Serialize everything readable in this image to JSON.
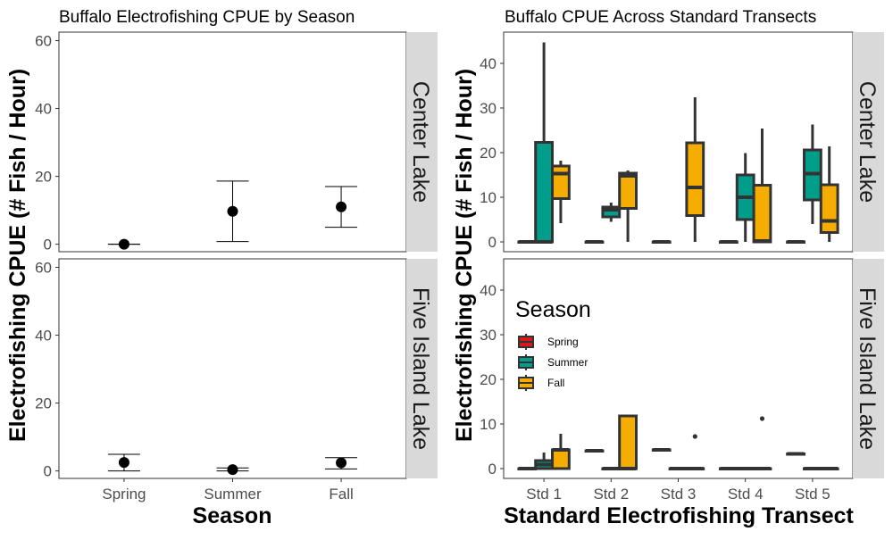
{
  "chart_data": [
    {
      "type": "point-errorbar",
      "title": "Buffalo Electrofishing CPUE by Season",
      "xlabel": "Season",
      "ylabel": "Electrofishing CPUE (# Fish / Hour)",
      "categories": [
        "Spring",
        "Summer",
        "Fall"
      ],
      "ylim": [
        0,
        60
      ],
      "yticks": [
        0,
        20,
        40,
        60
      ],
      "grid": false,
      "facets": [
        {
          "label": "Center Lake",
          "mean": [
            0,
            9.7,
            11
          ],
          "lower": [
            0,
            0.8,
            5
          ],
          "upper": [
            0,
            18.6,
            17
          ]
        },
        {
          "label": "Five Island Lake",
          "mean": [
            2.5,
            0.4,
            2.4
          ],
          "lower": [
            0,
            0,
            0.6
          ],
          "upper": [
            4.9,
            0.9,
            3.9
          ]
        }
      ]
    },
    {
      "type": "boxplot",
      "title": "Buffalo CPUE Across Standard Transects",
      "xlabel": "Standard Electrofishing Transect",
      "ylabel": "Electrofishing CPUE (# Fish / Hour)",
      "categories": [
        "Std 1",
        "Std 2",
        "Std 3",
        "Std 4",
        "Std 5"
      ],
      "ylim": [
        0,
        45
      ],
      "yticks": [
        0,
        10,
        20,
        30,
        40
      ],
      "grid": false,
      "legend": {
        "title": "Season",
        "placement": "inside-bottom-left",
        "entries": [
          "Spring",
          "Summer",
          "Fall"
        ]
      },
      "series_colors": {
        "Spring": "#d7191c",
        "Summer": "#009e8a",
        "Fall": "#f4ad00"
      },
      "facets": [
        {
          "label": "Center Lake",
          "boxes": [
            {
              "category": "Std 1",
              "series": "Spring",
              "min": 0,
              "q1": 0,
              "median": 0,
              "q3": 0,
              "max": 0,
              "outliers": []
            },
            {
              "category": "Std 1",
              "series": "Summer",
              "min": 0,
              "q1": 0,
              "median": 0,
              "q3": 22.3,
              "max": 44.7,
              "outliers": []
            },
            {
              "category": "Std 1",
              "series": "Fall",
              "min": 4.2,
              "q1": 9.7,
              "median": 15.3,
              "q3": 17,
              "max": 18.2,
              "outliers": []
            },
            {
              "category": "Std 2",
              "series": "Spring",
              "min": 0,
              "q1": 0,
              "median": 0,
              "q3": 0,
              "max": 0,
              "outliers": []
            },
            {
              "category": "Std 2",
              "series": "Summer",
              "min": 4.5,
              "q1": 5.6,
              "median": 7.2,
              "q3": 7.8,
              "max": 8.8,
              "outliers": []
            },
            {
              "category": "Std 2",
              "series": "Fall",
              "min": 0,
              "q1": 7.5,
              "median": 14.8,
              "q3": 15.4,
              "max": 16,
              "outliers": []
            },
            {
              "category": "Std 3",
              "series": "Spring",
              "min": 0,
              "q1": 0,
              "median": 0,
              "q3": 0,
              "max": 0,
              "outliers": []
            },
            {
              "category": "Std 3",
              "series": "Fall",
              "min": 0,
              "q1": 5.9,
              "median": 12.2,
              "q3": 22.2,
              "max": 32.4,
              "outliers": []
            },
            {
              "category": "Std 4",
              "series": "Spring",
              "min": 0,
              "q1": 0,
              "median": 0,
              "q3": 0,
              "max": 0,
              "outliers": []
            },
            {
              "category": "Std 4",
              "series": "Summer",
              "min": 0,
              "q1": 5,
              "median": 10,
              "q3": 15,
              "max": 19.9,
              "outliers": []
            },
            {
              "category": "Std 4",
              "series": "Fall",
              "min": 0,
              "q1": 0,
              "median": 0.2,
              "q3": 12.7,
              "max": 25.4,
              "outliers": []
            },
            {
              "category": "Std 5",
              "series": "Spring",
              "min": 0,
              "q1": 0,
              "median": 0,
              "q3": 0,
              "max": 0,
              "outliers": []
            },
            {
              "category": "Std 5",
              "series": "Summer",
              "min": 4,
              "q1": 9.4,
              "median": 15.3,
              "q3": 20.6,
              "max": 26.3,
              "outliers": []
            },
            {
              "category": "Std 5",
              "series": "Fall",
              "min": 0,
              "q1": 2.1,
              "median": 4.7,
              "q3": 12.8,
              "max": 21.4,
              "outliers": []
            }
          ]
        },
        {
          "label": "Five Island Lake",
          "boxes": [
            {
              "category": "Std 1",
              "series": "Spring",
              "min": 0,
              "q1": 0,
              "median": 0,
              "q3": 0,
              "max": 0,
              "outliers": []
            },
            {
              "category": "Std 1",
              "series": "Summer",
              "min": 0,
              "q1": 0,
              "median": 0.9,
              "q3": 1.8,
              "max": 3.6,
              "outliers": []
            },
            {
              "category": "Std 1",
              "series": "Fall",
              "min": 0,
              "q1": 0,
              "median": 4.2,
              "q3": 4.2,
              "max": 7.8,
              "outliers": []
            },
            {
              "category": "Std 2",
              "series": "Spring",
              "min": 4,
              "q1": 4,
              "median": 4,
              "q3": 4,
              "max": 4,
              "outliers": []
            },
            {
              "category": "Std 2",
              "series": "Summer",
              "min": 0,
              "q1": 0,
              "median": 0,
              "q3": 0,
              "max": 0,
              "outliers": []
            },
            {
              "category": "Std 2",
              "series": "Fall",
              "min": 0,
              "q1": 0,
              "median": 0,
              "q3": 11.8,
              "max": 11.8,
              "outliers": []
            },
            {
              "category": "Std 3",
              "series": "Spring",
              "min": 4.2,
              "q1": 4.2,
              "median": 4.2,
              "q3": 4.2,
              "max": 4.2,
              "outliers": []
            },
            {
              "category": "Std 3",
              "series": "Summer",
              "min": 0,
              "q1": 0,
              "median": 0,
              "q3": 0,
              "max": 0,
              "outliers": []
            },
            {
              "category": "Std 3",
              "series": "Fall",
              "min": 0,
              "q1": 0,
              "median": 0,
              "q3": 0,
              "max": 0,
              "outliers": [
                7.2
              ]
            },
            {
              "category": "Std 4",
              "series": "Spring",
              "min": 0,
              "q1": 0,
              "median": 0,
              "q3": 0,
              "max": 0,
              "outliers": []
            },
            {
              "category": "Std 4",
              "series": "Summer",
              "min": 0,
              "q1": 0,
              "median": 0,
              "q3": 0,
              "max": 0,
              "outliers": []
            },
            {
              "category": "Std 4",
              "series": "Fall",
              "min": 0,
              "q1": 0,
              "median": 0,
              "q3": 0,
              "max": 0,
              "outliers": [
                11.2
              ]
            },
            {
              "category": "Std 5",
              "series": "Spring",
              "min": 3.3,
              "q1": 3.3,
              "median": 3.3,
              "q3": 3.3,
              "max": 3.3,
              "outliers": []
            },
            {
              "category": "Std 5",
              "series": "Summer",
              "min": 0,
              "q1": 0,
              "median": 0,
              "q3": 0,
              "max": 0,
              "outliers": []
            },
            {
              "category": "Std 5",
              "series": "Fall",
              "min": 0,
              "q1": 0,
              "median": 0,
              "q3": 0,
              "max": 0,
              "outliers": []
            }
          ]
        }
      ]
    }
  ]
}
